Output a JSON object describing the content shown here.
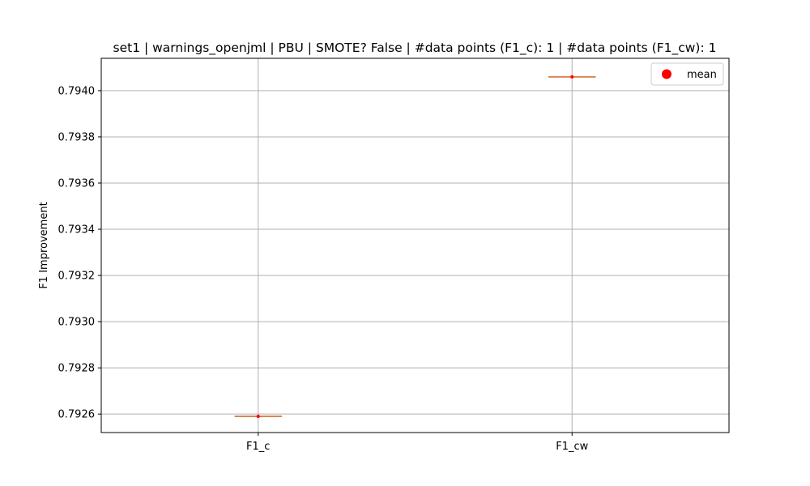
{
  "chart_data": {
    "type": "box",
    "title": "set1 | warnings_openjml | PBU | SMOTE? False | #data points (F1_c): 1 | #data points (F1_cw): 1",
    "xlabel": "",
    "ylabel": "F1 Improvement",
    "categories": [
      "F1_c",
      "F1_cw"
    ],
    "values": [
      0.79259,
      0.79406
    ],
    "means": [
      0.79259,
      0.79406
    ],
    "ylim": [
      0.79252,
      0.79414
    ],
    "yticks": [
      0.7926,
      0.7928,
      0.793,
      0.7932,
      0.7934,
      0.7936,
      0.7938,
      0.794
    ],
    "ytick_labels": [
      "0.7926",
      "0.7928",
      "0.7930",
      "0.7932",
      "0.7934",
      "0.7936",
      "0.7938",
      "0.7940"
    ],
    "grid": true,
    "legend": {
      "position": "top-right",
      "entries": [
        {
          "label": "mean",
          "color": "#ff0000",
          "marker": "circle"
        }
      ]
    },
    "colors": {
      "median": "#dd8452",
      "mean": "#ff0000",
      "grid": "#b0b0b0"
    }
  }
}
